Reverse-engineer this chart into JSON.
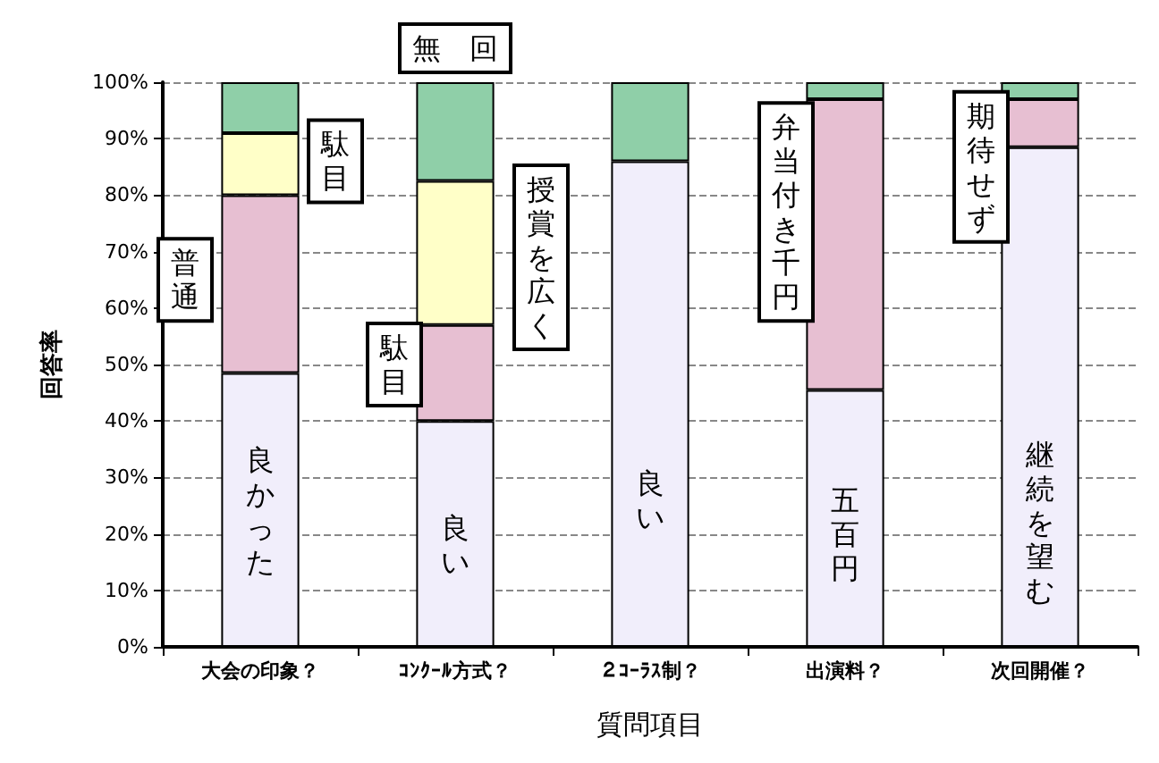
{
  "chart_data": {
    "type": "bar",
    "stacked": true,
    "xlabel": "質問項目",
    "ylabel": "回答率",
    "categories": [
      "大会の印象？",
      "ｺﾝｸｰﾙ方式？",
      "２ｺｰﾗｽ制？",
      "出演料？",
      "次回開催？"
    ],
    "series": [
      {
        "color": "#f1eefb",
        "values": [
          48.5,
          40,
          86,
          45.5,
          88.5
        ]
      },
      {
        "color": "#e7bfd2",
        "values": [
          31.5,
          17,
          0,
          51.5,
          8.5
        ]
      },
      {
        "color": "#ffffc8",
        "values": [
          11,
          25.5,
          0,
          0,
          0
        ]
      },
      {
        "color": "#8fcfa8",
        "values": [
          9,
          17.5,
          14,
          3,
          3
        ]
      }
    ],
    "ylim": [
      0,
      100
    ],
    "yticks": [
      {
        "value": 0,
        "label": "0%"
      },
      {
        "value": 10,
        "label": "10%"
      },
      {
        "value": 20,
        "label": "20%"
      },
      {
        "value": 30,
        "label": "30%"
      },
      {
        "value": 40,
        "label": "40%"
      },
      {
        "value": 50,
        "label": "50%"
      },
      {
        "value": 60,
        "label": "60%"
      },
      {
        "value": 70,
        "label": "70%"
      },
      {
        "value": 80,
        "label": "80%"
      },
      {
        "value": 90,
        "label": "90%"
      },
      {
        "value": 100,
        "label": "100%"
      }
    ],
    "grid": "y",
    "annotations": [
      "良かった",
      "普通",
      "駄目",
      "無　回",
      "授賞を広く",
      "駄目",
      "良い",
      "良い",
      "弁当付き千円",
      "五百円",
      "期待せず",
      "継続を望む"
    ]
  }
}
